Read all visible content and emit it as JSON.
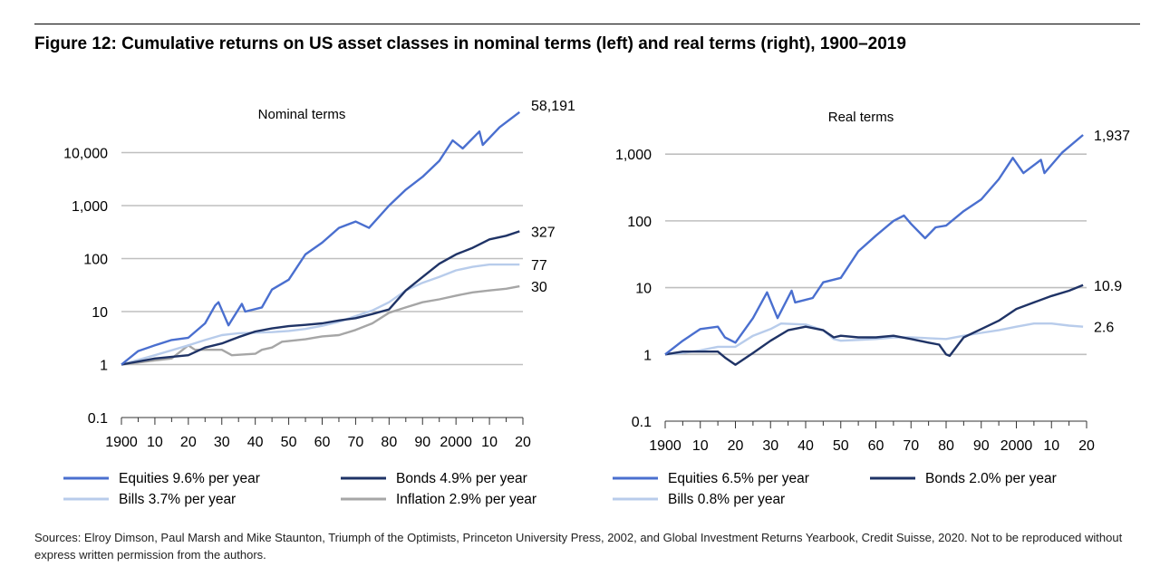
{
  "figure": {
    "title": "Figure 12: Cumulative returns on US asset classes in nominal terms (left) and real terms (right), 1900–2019",
    "sources": "Sources: Elroy Dimson, Paul Marsh and Mike Staunton, Triumph of the Optimists, Princeton University Press, 2002, and Global Investment Returns Yearbook, Credit Suisse, 2020. Not to be reproduced without express written permission from the authors."
  },
  "chart_data": [
    {
      "type": "line",
      "title": "Nominal terms",
      "yscale": "log",
      "ylim": [
        0.1,
        100000
      ],
      "ytick_values": [
        0.1,
        1,
        10,
        100,
        1000,
        10000
      ],
      "ytick_labels": [
        "0.1",
        "1",
        "10",
        "100",
        "1,000",
        "10,000"
      ],
      "xlim": [
        1900,
        2020
      ],
      "xtick_values": [
        1900,
        1910,
        1920,
        1930,
        1940,
        1950,
        1960,
        1970,
        1980,
        1990,
        2000,
        2010,
        2020
      ],
      "xtick_labels": [
        "1900",
        "10",
        "20",
        "30",
        "40",
        "50",
        "60",
        "70",
        "80",
        "90",
        "2000",
        "10",
        "20"
      ],
      "grid": true,
      "legend_position": "bottom",
      "series": [
        {
          "name": "Equities  9.6% per year",
          "color": "#4A6FCF",
          "end_label": "58,191",
          "x": [
            1900,
            1905,
            1910,
            1915,
            1920,
            1925,
            1928,
            1929,
            1932,
            1936,
            1937,
            1942,
            1945,
            1950,
            1955,
            1960,
            1965,
            1970,
            1974,
            1980,
            1985,
            1990,
            1995,
            1999,
            2002,
            2007,
            2008,
            2013,
            2019
          ],
          "y": [
            1,
            1.8,
            2.3,
            2.9,
            3.2,
            6,
            13,
            15,
            5.5,
            14,
            10,
            12,
            26,
            40,
            120,
            200,
            380,
            500,
            380,
            1000,
            2000,
            3500,
            7000,
            17000,
            12000,
            25000,
            14000,
            30000,
            58191
          ]
        },
        {
          "name": "Bonds  4.9% per year",
          "color": "#1F3366",
          "end_label": "327",
          "x": [
            1900,
            1910,
            1920,
            1925,
            1930,
            1935,
            1940,
            1945,
            1950,
            1955,
            1960,
            1965,
            1970,
            1975,
            1980,
            1985,
            1990,
            1995,
            2000,
            2005,
            2010,
            2015,
            2019
          ],
          "y": [
            1,
            1.3,
            1.5,
            2.1,
            2.5,
            3.3,
            4.2,
            4.8,
            5.3,
            5.6,
            6,
            6.8,
            7.5,
            9,
            11,
            25,
            45,
            80,
            120,
            160,
            230,
            270,
            327
          ]
        },
        {
          "name": "Bills  3.7% per year",
          "color": "#B8CCEB",
          "end_label": "77",
          "x": [
            1900,
            1910,
            1920,
            1925,
            1930,
            1935,
            1940,
            1945,
            1950,
            1955,
            1960,
            1965,
            1970,
            1975,
            1980,
            1985,
            1990,
            1995,
            2000,
            2005,
            2010,
            2015,
            2019
          ],
          "y": [
            1,
            1.5,
            2.3,
            2.9,
            3.6,
            3.9,
            4,
            4.1,
            4.3,
            4.7,
            5.4,
            6.4,
            8.2,
            10.5,
            15,
            25,
            35,
            45,
            60,
            70,
            77,
            77,
            77
          ]
        },
        {
          "name": "Inflation  2.9% per year",
          "color": "#A6A6A6",
          "end_label": "30",
          "x": [
            1900,
            1910,
            1915,
            1920,
            1922,
            1930,
            1933,
            1940,
            1942,
            1945,
            1948,
            1955,
            1960,
            1965,
            1970,
            1975,
            1980,
            1985,
            1990,
            1995,
            2000,
            2005,
            2010,
            2015,
            2019
          ],
          "y": [
            1,
            1.2,
            1.3,
            2.3,
            1.9,
            1.9,
            1.5,
            1.6,
            1.9,
            2.1,
            2.7,
            3,
            3.4,
            3.6,
            4.5,
            6,
            9.5,
            12,
            15,
            17,
            20,
            23,
            25,
            27,
            30
          ]
        }
      ]
    },
    {
      "type": "line",
      "title": "Real terms",
      "yscale": "log",
      "ylim": [
        0.1,
        3000
      ],
      "ytick_values": [
        0.1,
        1,
        10,
        100,
        1000
      ],
      "ytick_labels": [
        "0.1",
        "1",
        "10",
        "100",
        "1,000"
      ],
      "xlim": [
        1900,
        2020
      ],
      "xtick_values": [
        1900,
        1910,
        1920,
        1930,
        1940,
        1950,
        1960,
        1970,
        1980,
        1990,
        2000,
        2010,
        2020
      ],
      "xtick_labels": [
        "1900",
        "10",
        "20",
        "30",
        "40",
        "50",
        "60",
        "70",
        "80",
        "90",
        "2000",
        "10",
        "20"
      ],
      "grid": true,
      "legend_position": "bottom",
      "series": [
        {
          "name": "Equities  6.5% per year",
          "color": "#4A6FCF",
          "end_label": "1,937",
          "x": [
            1900,
            1905,
            1910,
            1915,
            1917,
            1920,
            1925,
            1929,
            1932,
            1936,
            1937,
            1942,
            1945,
            1950,
            1955,
            1960,
            1965,
            1968,
            1970,
            1974,
            1977,
            1980,
            1985,
            1990,
            1995,
            1999,
            2002,
            2007,
            2008,
            2013,
            2019
          ],
          "y": [
            1,
            1.6,
            2.4,
            2.6,
            1.8,
            1.5,
            3.5,
            8.5,
            3.5,
            9,
            6,
            7,
            12,
            14,
            35,
            60,
            100,
            120,
            90,
            55,
            80,
            85,
            140,
            210,
            420,
            880,
            520,
            820,
            520,
            1050,
            1937
          ]
        },
        {
          "name": "Bonds 2.0% per year",
          "color": "#1F3366",
          "end_label": "10.9",
          "x": [
            1900,
            1905,
            1910,
            1915,
            1917,
            1920,
            1925,
            1930,
            1935,
            1940,
            1945,
            1948,
            1950,
            1955,
            1960,
            1965,
            1970,
            1975,
            1978,
            1980,
            1981,
            1985,
            1990,
            1995,
            2000,
            2005,
            2010,
            2015,
            2019
          ],
          "y": [
            1,
            1.1,
            1.1,
            1.1,
            0.9,
            0.7,
            1.05,
            1.6,
            2.3,
            2.6,
            2.3,
            1.8,
            1.9,
            1.8,
            1.8,
            1.9,
            1.7,
            1.5,
            1.4,
            1.0,
            0.95,
            1.8,
            2.4,
            3.2,
            4.8,
            6,
            7.5,
            9,
            10.9
          ]
        },
        {
          "name": "Bills 0.8% per year",
          "color": "#B8CCEB",
          "end_label": "2.6",
          "x": [
            1900,
            1905,
            1910,
            1915,
            1920,
            1925,
            1930,
            1933,
            1940,
            1945,
            1948,
            1950,
            1955,
            1960,
            1965,
            1970,
            1975,
            1980,
            1985,
            1990,
            1995,
            2000,
            2005,
            2010,
            2015,
            2019
          ],
          "y": [
            1,
            1.05,
            1.15,
            1.3,
            1.3,
            1.9,
            2.4,
            2.9,
            2.8,
            2.3,
            1.7,
            1.6,
            1.65,
            1.7,
            1.8,
            1.8,
            1.75,
            1.7,
            1.9,
            2.1,
            2.3,
            2.6,
            2.9,
            2.9,
            2.7,
            2.6
          ]
        }
      ]
    }
  ]
}
